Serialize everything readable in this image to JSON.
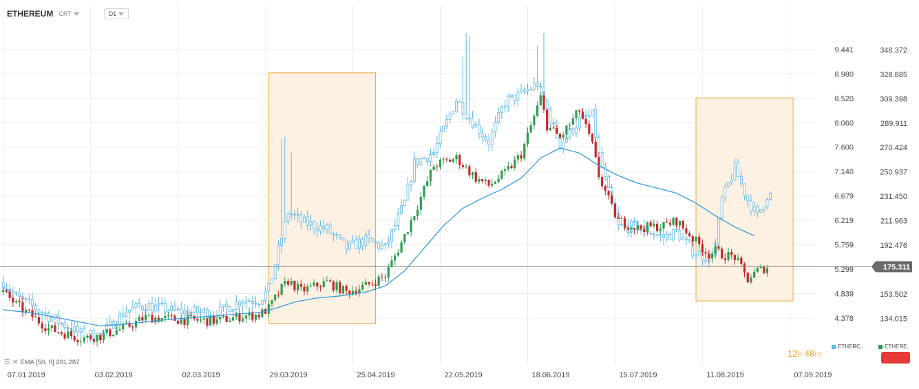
{
  "header": {
    "symbol": "ETHEREUM",
    "chart_type": "CRT",
    "timeframe": "D1"
  },
  "indicator_legend": {
    "text": "EMA [50, 0] 201.287",
    "visibility_icon": "eye-icon",
    "remove_icon": "close-icon"
  },
  "timer": {
    "hours": "12",
    "h": "h",
    "minutes": "48",
    "m": "m"
  },
  "series_legend": [
    {
      "label": "ETHERC..",
      "color": "#5bb8e8"
    },
    {
      "label": "ETHERE..",
      "color": "#2e9e4f"
    }
  ],
  "colors": {
    "series_a": "#5bb8e8",
    "bull": "#2e9e4f",
    "bear": "#c62828",
    "ema": "#3a9ad9",
    "highlight_fill": "#fdf1e3",
    "highlight_stroke": "#f0a640",
    "price_line": "#888888",
    "badge": "#6b6b6b"
  },
  "chart_data": {
    "type": "candlestick",
    "x_labels": [
      "07.01.2019",
      "03.02.2019",
      "02.03.2019",
      "29.03.2019",
      "25.04.2019",
      "22.05.2019",
      "18.06.2019",
      "15.07.2019",
      "11.08.2019",
      "07.09.2019"
    ],
    "x_label_days": [
      0,
      27,
      54,
      81,
      108,
      135,
      162,
      189,
      216,
      243
    ],
    "x_range_days": [
      -1,
      251
    ],
    "y_left": {
      "ticks": [
        "9.441",
        "8.980",
        "8.520",
        "8.060",
        "7.600",
        "7.140",
        "6.679",
        "6.219",
        "5.759",
        "5.299",
        "4.839",
        "4.378"
      ],
      "range": [
        3.912,
        9.906
      ]
    },
    "y_right": {
      "ticks": [
        "348.372",
        "328.885",
        "309.398",
        "289.911",
        "270.424",
        "250.937",
        "231.450",
        "211.963",
        "192.476",
        "153.502",
        "134.015"
      ],
      "range": [
        114.52,
        368.35
      ]
    },
    "current_price": {
      "value": 175.311,
      "label": "175.311"
    },
    "highlight_ranges": [
      {
        "start_day": 82,
        "end_day": 115,
        "low": 130,
        "high": 330
      },
      {
        "start_day": 214,
        "end_day": 244,
        "low": 148,
        "high": 310
      }
    ],
    "series": [
      {
        "name": "ETHERC..",
        "axis": "left",
        "kind": "ohlc-thin",
        "anchors": [
          [
            0,
            5.05
          ],
          [
            4,
            4.78
          ],
          [
            14,
            4.42
          ],
          [
            24,
            4.08
          ],
          [
            30,
            4.06
          ],
          [
            38,
            4.52
          ],
          [
            44,
            4.62
          ],
          [
            54,
            4.5
          ],
          [
            66,
            4.48
          ],
          [
            74,
            4.72
          ],
          [
            79,
            4.72
          ],
          [
            82,
            4.92
          ],
          [
            88,
            6.38
          ],
          [
            92,
            6.2
          ],
          [
            100,
            6.05
          ],
          [
            106,
            5.7
          ],
          [
            112,
            5.85
          ],
          [
            118,
            5.7
          ],
          [
            124,
            6.55
          ],
          [
            127,
            7.3
          ],
          [
            133,
            7.5
          ],
          [
            140,
            8.5
          ],
          [
            146,
            8.0
          ],
          [
            150,
            7.7
          ],
          [
            155,
            8.45
          ],
          [
            160,
            8.6
          ],
          [
            165,
            8.8
          ],
          [
            168,
            8.3
          ],
          [
            172,
            7.65
          ],
          [
            178,
            8.1
          ],
          [
            182,
            8.2
          ],
          [
            184,
            7.45
          ],
          [
            188,
            6.5
          ],
          [
            190,
            6.1
          ],
          [
            196,
            6.1
          ],
          [
            204,
            5.9
          ],
          [
            208,
            6.0
          ],
          [
            213,
            5.65
          ],
          [
            218,
            5.5
          ],
          [
            220,
            5.75
          ],
          [
            222,
            6.6
          ],
          [
            226,
            7.2
          ],
          [
            230,
            6.6
          ],
          [
            233,
            6.3
          ],
          [
            236,
            6.7
          ]
        ],
        "spikes": [
          [
            86,
            7.75
          ],
          [
            87,
            7.8
          ],
          [
            89,
            7.5
          ],
          [
            142,
            9.3
          ],
          [
            143,
            9.75
          ],
          [
            144,
            9.7
          ],
          [
            165,
            9.5
          ],
          [
            167,
            9.75
          ]
        ]
      },
      {
        "name": "ETHERE..",
        "axis": "right",
        "kind": "candles",
        "anchors": [
          [
            0,
            155
          ],
          [
            4,
            145
          ],
          [
            14,
            126
          ],
          [
            24,
            118
          ],
          [
            30,
            120
          ],
          [
            38,
            127
          ],
          [
            44,
            135
          ],
          [
            54,
            133
          ],
          [
            66,
            132
          ],
          [
            74,
            136
          ],
          [
            79,
            137
          ],
          [
            82,
            142
          ],
          [
            86,
            158
          ],
          [
            88,
            164
          ],
          [
            92,
            156
          ],
          [
            100,
            163
          ],
          [
            106,
            155
          ],
          [
            112,
            160
          ],
          [
            118,
            168
          ],
          [
            124,
            200
          ],
          [
            127,
            218
          ],
          [
            133,
            256
          ],
          [
            140,
            262
          ],
          [
            146,
            246
          ],
          [
            150,
            240
          ],
          [
            155,
            250
          ],
          [
            160,
            265
          ],
          [
            166,
            310
          ],
          [
            168,
            288
          ],
          [
            172,
            278
          ],
          [
            178,
            300
          ],
          [
            182,
            272
          ],
          [
            184,
            248
          ],
          [
            188,
            222
          ],
          [
            190,
            212
          ],
          [
            196,
            206
          ],
          [
            204,
            208
          ],
          [
            208,
            212
          ],
          [
            213,
            198
          ],
          [
            218,
            185
          ],
          [
            220,
            188
          ],
          [
            222,
            185
          ],
          [
            226,
            183
          ],
          [
            230,
            165
          ],
          [
            233,
            172
          ],
          [
            236,
            175
          ]
        ]
      },
      {
        "name": "EMA [50, 0]",
        "axis": "right",
        "kind": "line",
        "points": [
          [
            0,
            141
          ],
          [
            10,
            138
          ],
          [
            20,
            133
          ],
          [
            30,
            128
          ],
          [
            40,
            130
          ],
          [
            50,
            133
          ],
          [
            60,
            135
          ],
          [
            70,
            137
          ],
          [
            80,
            139
          ],
          [
            84,
            142
          ],
          [
            90,
            147
          ],
          [
            96,
            150
          ],
          [
            104,
            152
          ],
          [
            112,
            155
          ],
          [
            118,
            160
          ],
          [
            124,
            172
          ],
          [
            130,
            190
          ],
          [
            136,
            208
          ],
          [
            142,
            222
          ],
          [
            148,
            230
          ],
          [
            154,
            237
          ],
          [
            160,
            246
          ],
          [
            166,
            262
          ],
          [
            172,
            270
          ],
          [
            178,
            266
          ],
          [
            184,
            256
          ],
          [
            190,
            248
          ],
          [
            196,
            242
          ],
          [
            202,
            238
          ],
          [
            208,
            234
          ],
          [
            214,
            226
          ],
          [
            220,
            216
          ],
          [
            226,
            207
          ],
          [
            232,
            200
          ]
        ]
      }
    ]
  }
}
